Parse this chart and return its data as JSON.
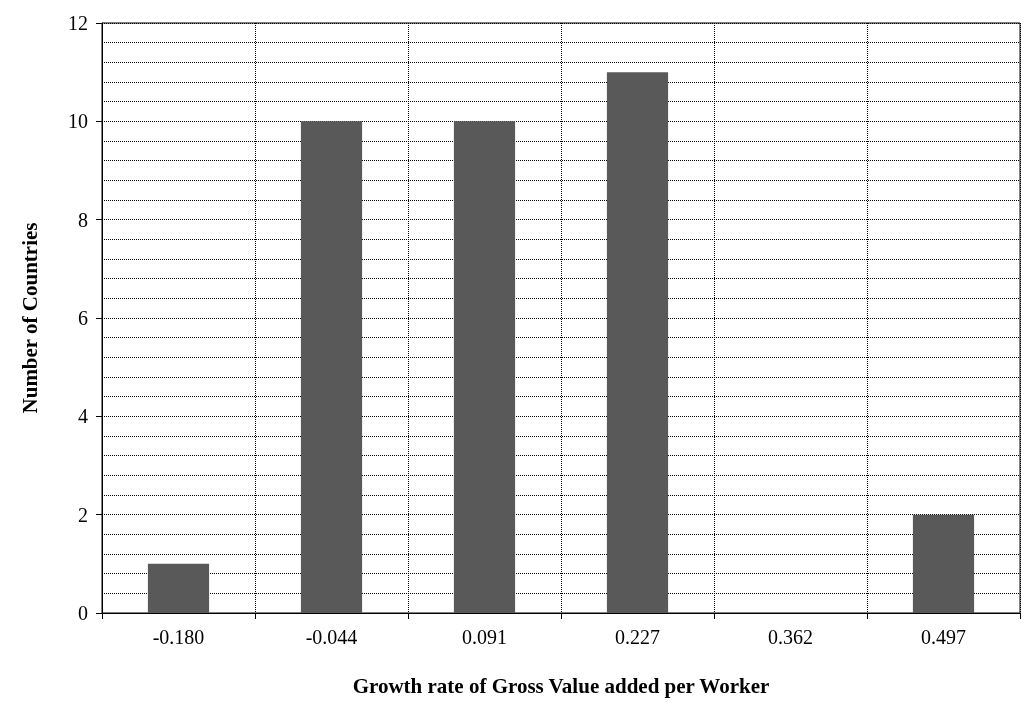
{
  "chart_data": {
    "type": "bar",
    "xlabel": "Growth rate of Gross Value added per Worker",
    "ylabel": "Number of Countries",
    "categories": [
      "-0.180",
      "-0.044",
      "0.091",
      "0.227",
      "0.362",
      "0.497"
    ],
    "values": [
      1,
      10,
      10,
      11,
      0,
      2
    ],
    "color": "#595959",
    "ylim": [
      0,
      12
    ],
    "yticks": [
      0,
      2,
      4,
      6,
      8,
      10,
      12
    ],
    "grid": true
  }
}
